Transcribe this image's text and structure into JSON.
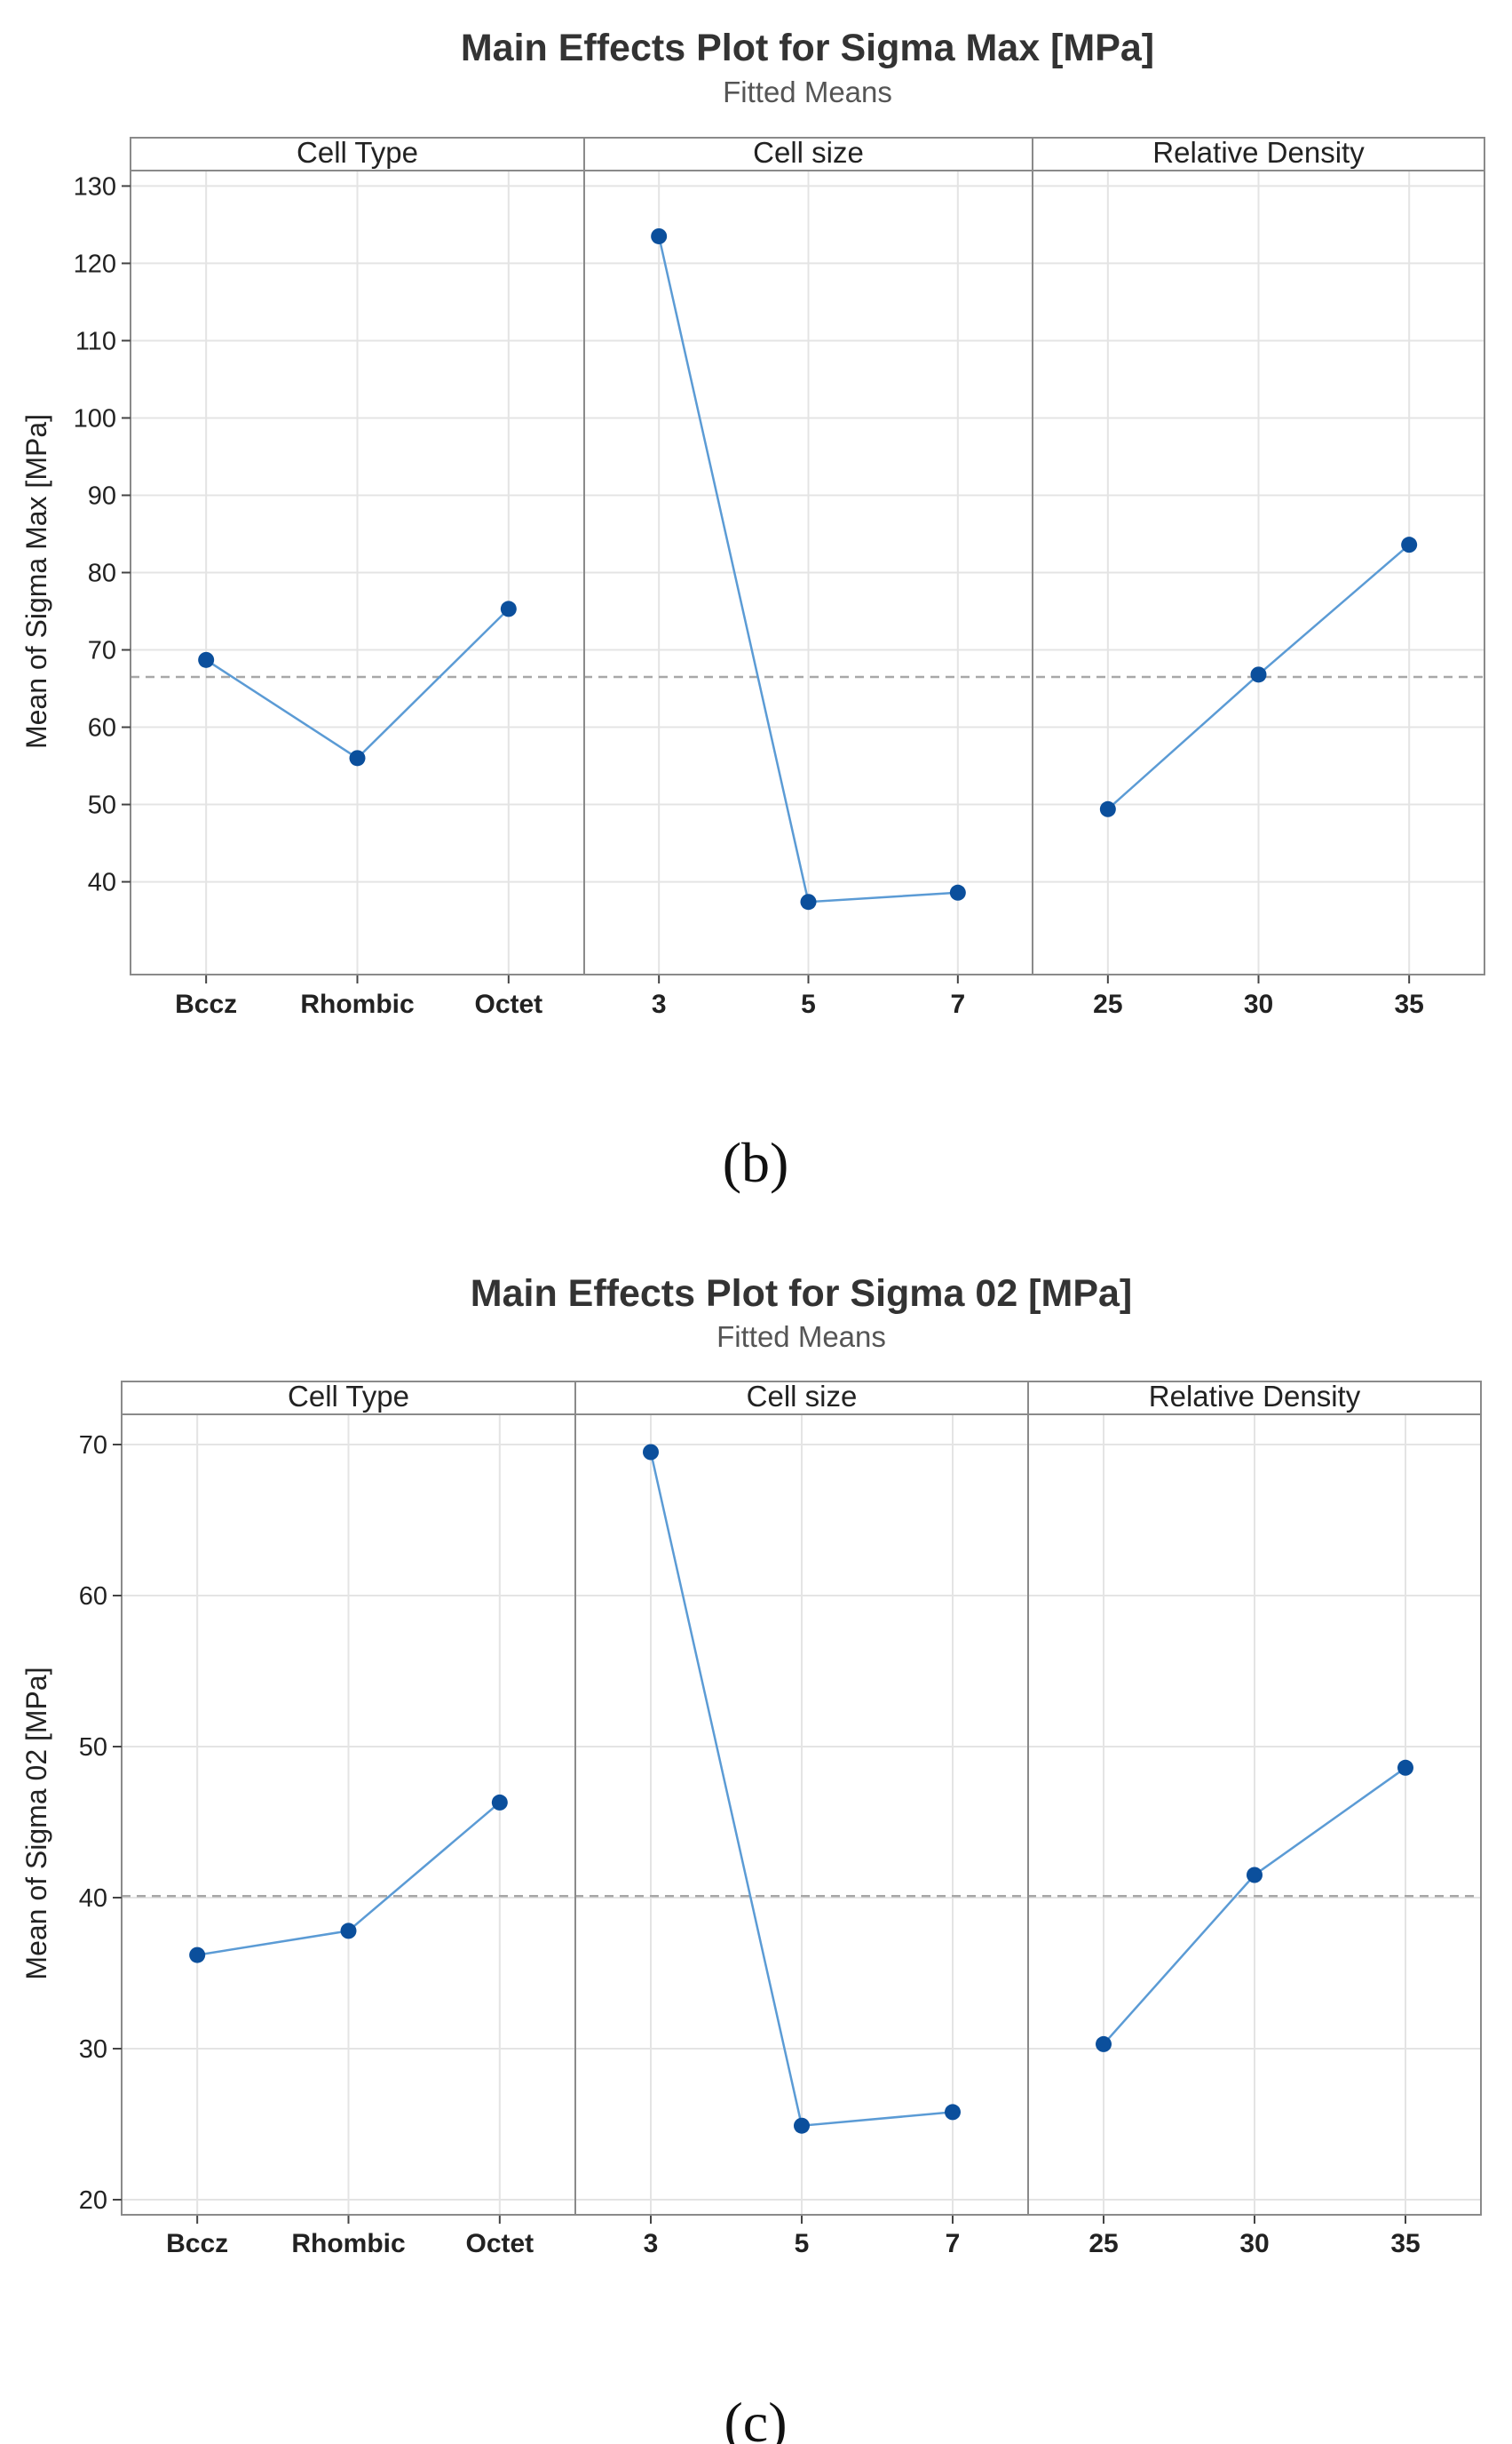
{
  "chart_data": [
    {
      "type": "line",
      "id": "sigma-max",
      "title": "Main Effects Plot for Sigma Max [MPa]",
      "subtitle": "Fitted Means",
      "ylabel": "Mean of Sigma Max [MPa]",
      "caption": "(b)",
      "ylim": [
        28,
        132
      ],
      "yticks": [
        40,
        50,
        60,
        70,
        80,
        90,
        100,
        110,
        120,
        130
      ],
      "reference_mean": 66.5,
      "colors": {
        "line": "#5b9bd5",
        "marker": "#0b4f9c",
        "reference": "#a8a8a8"
      },
      "panels": [
        {
          "name": "Cell Type",
          "categories": [
            "Bccz",
            "Rhombic",
            "Octet"
          ],
          "values": [
            68.7,
            56.0,
            75.3
          ]
        },
        {
          "name": "Cell size",
          "categories": [
            "3",
            "5",
            "7"
          ],
          "values": [
            123.5,
            37.4,
            38.6
          ]
        },
        {
          "name": "Relative Density",
          "categories": [
            "25",
            "30",
            "35"
          ],
          "values": [
            49.4,
            66.8,
            83.6
          ]
        }
      ]
    },
    {
      "type": "line",
      "id": "sigma-02",
      "title": "Main Effects Plot for Sigma 02 [MPa]",
      "subtitle": "Fitted Means",
      "ylabel": "Mean of Sigma 02 [MPa]",
      "caption": "(c)",
      "ylim": [
        19,
        72
      ],
      "yticks": [
        20,
        30,
        40,
        50,
        60,
        70
      ],
      "reference_mean": 40.1,
      "colors": {
        "line": "#5b9bd5",
        "marker": "#0b4f9c",
        "reference": "#a8a8a8"
      },
      "panels": [
        {
          "name": "Cell Type",
          "categories": [
            "Bccz",
            "Rhombic",
            "Octet"
          ],
          "values": [
            36.2,
            37.8,
            46.3
          ]
        },
        {
          "name": "Cell size",
          "categories": [
            "3",
            "5",
            "7"
          ],
          "values": [
            69.5,
            24.9,
            25.8
          ]
        },
        {
          "name": "Relative Density",
          "categories": [
            "25",
            "30",
            "35"
          ],
          "values": [
            30.3,
            41.5,
            48.6
          ]
        }
      ]
    }
  ]
}
